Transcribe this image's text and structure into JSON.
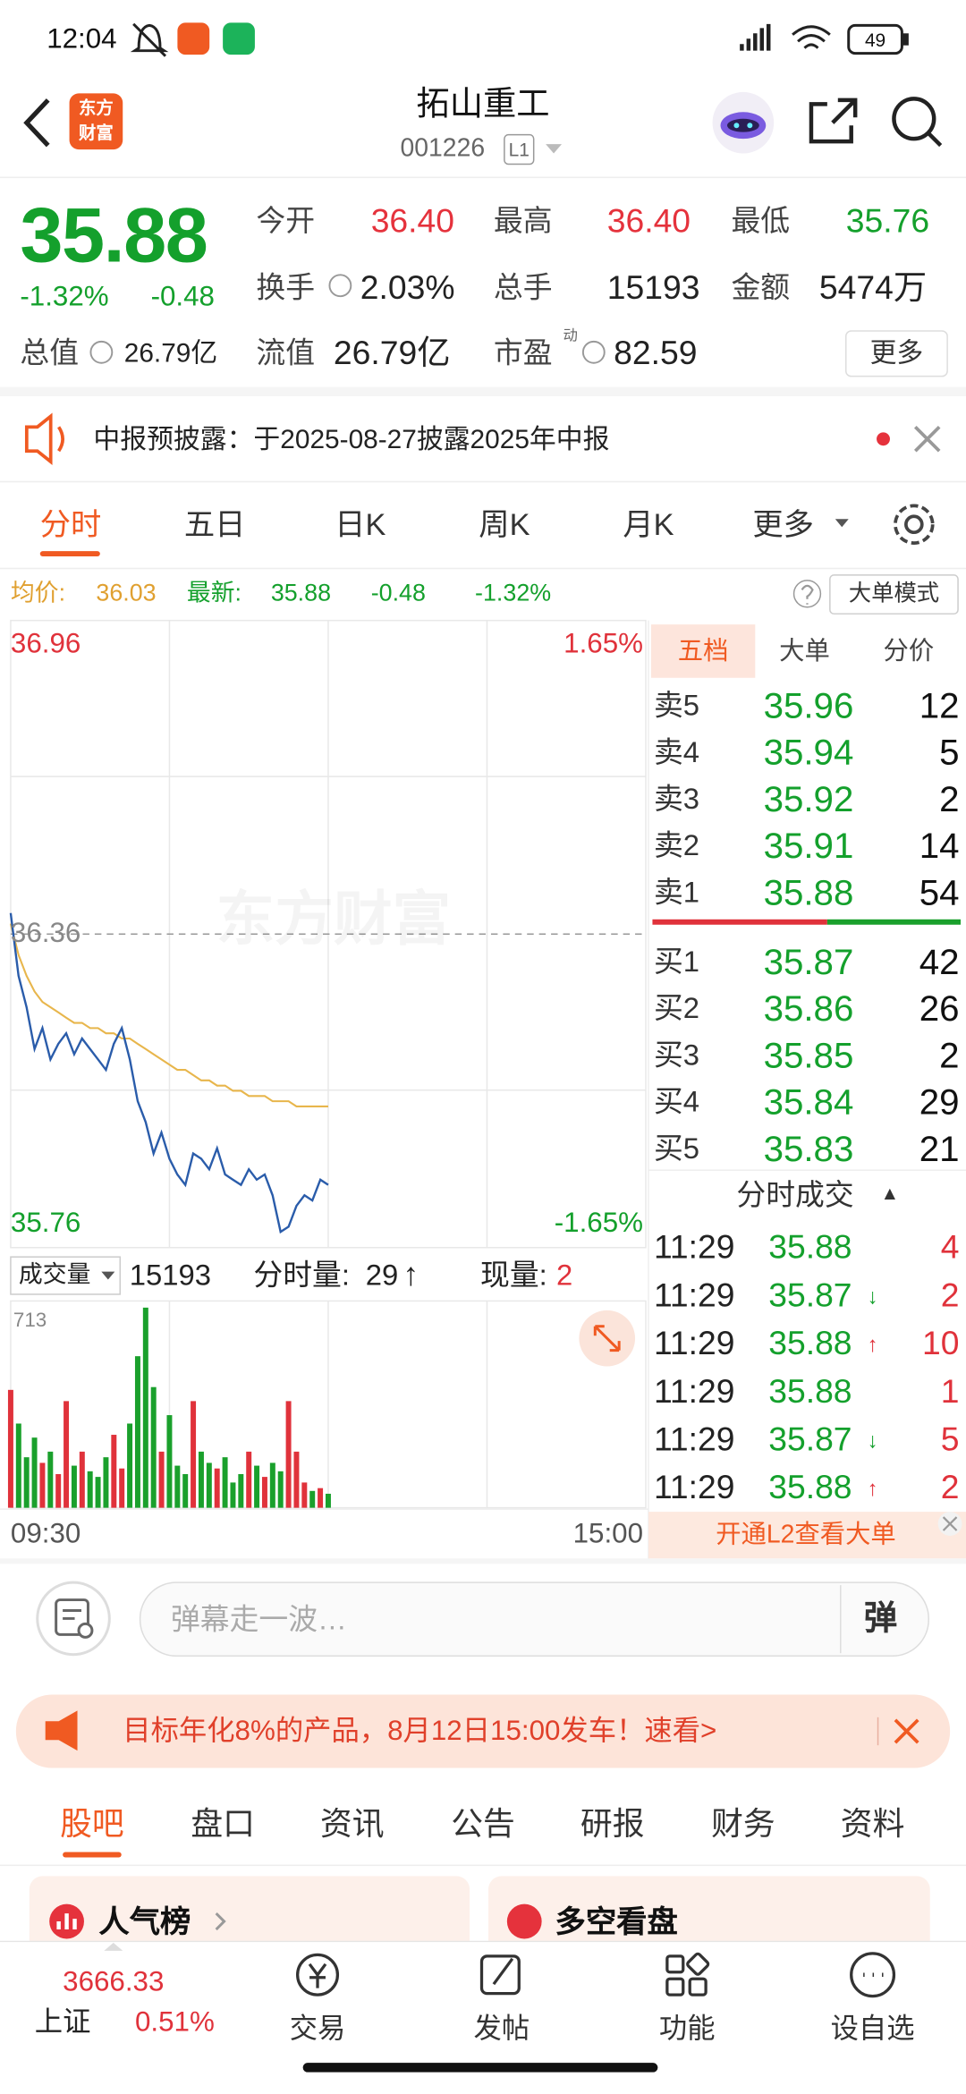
{
  "status_bar": {
    "time": "12:04",
    "battery": "49"
  },
  "header": {
    "logo": [
      "东方",
      "财富"
    ],
    "name": "拓山重工",
    "code": "001226",
    "level": "L1"
  },
  "quote": {
    "price": "35.88",
    "change_pct": "-1.32%",
    "change": "-0.48",
    "color": "#14a02c",
    "fields": [
      {
        "label": "今开",
        "value": "36.40",
        "color": "#e5323c"
      },
      {
        "label": "最高",
        "value": "36.40",
        "color": "#e5323c"
      },
      {
        "label": "最低",
        "value": "35.76",
        "color": "#14a02c"
      },
      {
        "label": "换手",
        "value": "2.03%",
        "color": "#222222"
      },
      {
        "label": "总手",
        "value": "15193",
        "color": "#222222"
      },
      {
        "label": "金额",
        "value": "5474万",
        "color": "#222222"
      },
      {
        "label": "总值",
        "value": "26.79亿",
        "color": "#222222"
      },
      {
        "label": "流值",
        "value": "26.79亿",
        "color": "#222222"
      },
      {
        "label": "市盈",
        "tag": "动",
        "value": "82.59",
        "color": "#222222"
      }
    ],
    "more": "更多"
  },
  "notice": "中报预披露：于2025-08-27披露2025年中报",
  "tabs": [
    "分时",
    "五日",
    "日K",
    "周K",
    "月K",
    "更多"
  ],
  "summary": {
    "avg_label": "均价:",
    "avg": "36.03",
    "latest_label": "最新:",
    "latest": "35.88",
    "change": "-0.48",
    "change_pct": "-1.32%",
    "mode": "大单模式"
  },
  "chart": {
    "ylim": [
      35.76,
      36.96
    ],
    "yticks": [
      35.76,
      36.36,
      36.96
    ],
    "pct_labels": [
      "1.65%",
      "-1.65%"
    ],
    "xticks": [
      "09:30",
      "15:00"
    ],
    "watermark": "东方财富",
    "price_color": "#2a5caa",
    "avg_color": "#e8b64c",
    "prices": [
      36.4,
      36.28,
      36.22,
      36.14,
      36.18,
      36.12,
      36.15,
      36.17,
      36.13,
      36.16,
      36.14,
      36.12,
      36.1,
      36.15,
      36.18,
      36.12,
      36.04,
      36.0,
      35.94,
      35.98,
      35.93,
      35.9,
      35.88,
      35.94,
      35.93,
      35.91,
      35.95,
      35.9,
      35.89,
      35.88,
      35.91,
      35.89,
      35.9,
      35.86,
      35.79,
      35.8,
      35.84,
      35.86,
      35.85,
      35.89,
      35.88
    ],
    "avg_prices": [
      36.38,
      36.32,
      36.28,
      36.25,
      36.23,
      36.22,
      36.21,
      36.2,
      36.19,
      36.19,
      36.18,
      36.18,
      36.17,
      36.17,
      36.16,
      36.16,
      36.15,
      36.14,
      36.13,
      36.12,
      36.11,
      36.1,
      36.1,
      36.09,
      36.08,
      36.08,
      36.07,
      36.07,
      36.06,
      36.06,
      36.05,
      36.05,
      36.05,
      36.04,
      36.04,
      36.04,
      36.03,
      36.03,
      36.03,
      36.03,
      36.03
    ],
    "volume": {
      "label": "成交量",
      "total": "15193",
      "tick_label": "分时量:",
      "tick": "29",
      "tick_arrow": "↑",
      "current_label": "现量:",
      "current": "2",
      "max": 713,
      "up_color": "#e0323b",
      "down_color": "#1aa02c",
      "values": [
        420,
        300,
        180,
        250,
        160,
        200,
        120,
        380,
        150,
        200,
        130,
        110,
        180,
        260,
        140,
        300,
        540,
        713,
        430,
        200,
        330,
        150,
        120,
        380,
        200,
        160,
        140,
        180,
        90,
        120,
        200,
        150,
        110,
        160,
        130,
        380,
        200,
        90,
        60,
        70,
        50
      ]
    }
  },
  "order_book": {
    "tabs": [
      "五档",
      "大单",
      "分价"
    ],
    "asks": [
      {
        "label": "卖5",
        "price": "35.96",
        "qty": "12"
      },
      {
        "label": "卖4",
        "price": "35.94",
        "qty": "5"
      },
      {
        "label": "卖3",
        "price": "35.92",
        "qty": "2"
      },
      {
        "label": "卖2",
        "price": "35.91",
        "qty": "14"
      },
      {
        "label": "卖1",
        "price": "35.88",
        "qty": "54"
      }
    ],
    "bids": [
      {
        "label": "买1",
        "price": "35.87",
        "qty": "42"
      },
      {
        "label": "买2",
        "price": "35.86",
        "qty": "26"
      },
      {
        "label": "买3",
        "price": "35.85",
        "qty": "2"
      },
      {
        "label": "买4",
        "price": "35.84",
        "qty": "29"
      },
      {
        "label": "买5",
        "price": "35.83",
        "qty": "21"
      }
    ]
  },
  "trades": {
    "title": "分时成交",
    "title_arrow": "▲",
    "rows": [
      {
        "time": "11:29",
        "price": "35.88",
        "qty": "4"
      },
      {
        "time": "11:29",
        "price": "35.87",
        "arrow": "↓",
        "qty": "2"
      },
      {
        "time": "11:29",
        "price": "35.88",
        "arrow": "↑",
        "qty": "10"
      },
      {
        "time": "11:29",
        "price": "35.88",
        "qty": "1"
      },
      {
        "time": "11:29",
        "price": "35.87",
        "arrow": "↓",
        "qty": "5"
      },
      {
        "time": "11:29",
        "price": "35.88",
        "arrow": "↑",
        "qty": "2"
      }
    ],
    "promo": "开通L2查看大单"
  },
  "comment": {
    "placeholder": "弹幕走一波…",
    "button": "弹"
  },
  "ad": "目标年化8%的产品，8月12日15:00发车！速看>",
  "bottom_tabs": [
    "股吧",
    "盘口",
    "资讯",
    "公告",
    "研报",
    "财务",
    "资料"
  ],
  "cards": [
    "人气榜",
    "多空看盘"
  ],
  "nav": {
    "index_value": "3666.33",
    "index_name": "上证",
    "index_pct": "0.51%",
    "items": [
      "交易",
      "发帖",
      "功能",
      "设自选"
    ]
  }
}
